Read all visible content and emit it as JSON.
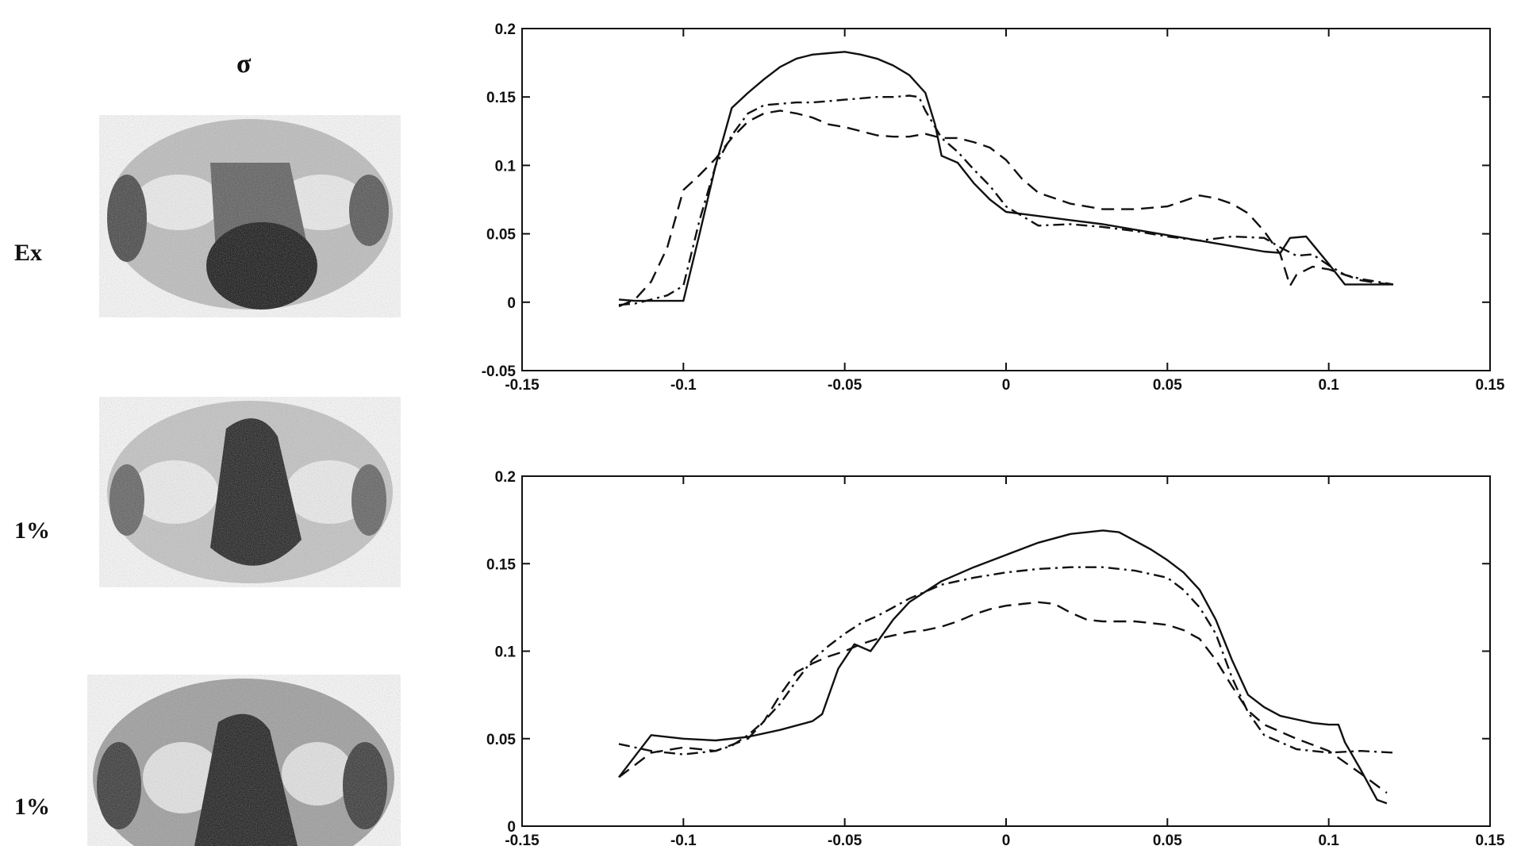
{
  "header": {
    "sigma": "σ"
  },
  "rows": [
    {
      "label": "Ex"
    },
    {
      "label": "1%"
    },
    {
      "label": "1%"
    }
  ],
  "chart_data": [
    {
      "type": "line",
      "xlim": [
        -0.15,
        0.15
      ],
      "ylim": [
        -0.05,
        0.2
      ],
      "xticks": [
        "-0.15",
        "-0.1",
        "-0.05",
        "0",
        "0.05",
        "0.1",
        "0.15"
      ],
      "yticks": [
        "-0.05",
        "0",
        "0.05",
        "0.1",
        "0.15",
        "0.2"
      ],
      "xtick_values": [
        -0.15,
        -0.1,
        -0.05,
        0,
        0.05,
        0.1,
        0.15
      ],
      "ytick_values": [
        -0.05,
        0,
        0.05,
        0.1,
        0.15,
        0.2
      ],
      "grid": false,
      "series": [
        {
          "style": "solid",
          "x": [
            -0.12,
            -0.115,
            -0.11,
            -0.1,
            -0.095,
            -0.09,
            -0.085,
            -0.08,
            -0.075,
            -0.07,
            -0.065,
            -0.06,
            -0.055,
            -0.05,
            -0.045,
            -0.04,
            -0.035,
            -0.03,
            -0.025,
            -0.022,
            -0.02,
            -0.015,
            -0.01,
            -0.005,
            0,
            0.01,
            0.02,
            0.03,
            0.04,
            0.05,
            0.06,
            0.07,
            0.08,
            0.085,
            0.088,
            0.093,
            0.1,
            0.105,
            0.11,
            0.115,
            0.12
          ],
          "y": [
            0.002,
            0.001,
            0.001,
            0.001,
            0.05,
            0.1,
            0.142,
            0.153,
            0.163,
            0.172,
            0.178,
            0.181,
            0.182,
            0.183,
            0.181,
            0.178,
            0.173,
            0.166,
            0.153,
            0.13,
            0.107,
            0.102,
            0.087,
            0.075,
            0.066,
            0.063,
            0.06,
            0.057,
            0.053,
            0.049,
            0.045,
            0.041,
            0.037,
            0.036,
            0.047,
            0.048,
            0.028,
            0.013,
            0.013,
            0.013,
            0.013
          ]
        },
        {
          "style": "dashed",
          "x": [
            -0.12,
            -0.115,
            -0.11,
            -0.105,
            -0.1,
            -0.095,
            -0.09,
            -0.085,
            -0.08,
            -0.075,
            -0.07,
            -0.065,
            -0.06,
            -0.055,
            -0.05,
            -0.045,
            -0.04,
            -0.035,
            -0.03,
            -0.025,
            -0.02,
            -0.015,
            -0.01,
            -0.005,
            0,
            0.005,
            0.01,
            0.02,
            0.03,
            0.04,
            0.05,
            0.055,
            0.06,
            0.065,
            0.07,
            0.075,
            0.08,
            0.085,
            0.088,
            0.09,
            0.095,
            0.1,
            0.105,
            0.11,
            0.115,
            0.12
          ],
          "y": [
            -0.003,
            0.002,
            0.015,
            0.04,
            0.082,
            0.093,
            0.105,
            0.12,
            0.132,
            0.138,
            0.14,
            0.138,
            0.135,
            0.13,
            0.128,
            0.125,
            0.122,
            0.121,
            0.121,
            0.123,
            0.12,
            0.12,
            0.117,
            0.113,
            0.104,
            0.09,
            0.08,
            0.072,
            0.068,
            0.068,
            0.07,
            0.074,
            0.078,
            0.076,
            0.072,
            0.065,
            0.052,
            0.035,
            0.012,
            0.02,
            0.026,
            0.024,
            0.02,
            0.016,
            0.014,
            0.013
          ]
        },
        {
          "style": "dashdot",
          "x": [
            -0.12,
            -0.115,
            -0.11,
            -0.105,
            -0.1,
            -0.095,
            -0.09,
            -0.085,
            -0.08,
            -0.075,
            -0.07,
            -0.065,
            -0.06,
            -0.055,
            -0.05,
            -0.045,
            -0.04,
            -0.035,
            -0.03,
            -0.027,
            -0.025,
            -0.02,
            -0.015,
            -0.01,
            -0.005,
            0,
            0.005,
            0.01,
            0.02,
            0.03,
            0.04,
            0.05,
            0.06,
            0.07,
            0.08,
            0.085,
            0.09,
            0.095,
            0.1,
            0.105,
            0.11,
            0.115,
            0.12
          ],
          "y": [
            -0.002,
            -0.001,
            0.002,
            0.005,
            0.012,
            0.06,
            0.1,
            0.122,
            0.138,
            0.144,
            0.145,
            0.146,
            0.146,
            0.147,
            0.148,
            0.149,
            0.15,
            0.15,
            0.151,
            0.15,
            0.14,
            0.12,
            0.11,
            0.097,
            0.085,
            0.07,
            0.063,
            0.056,
            0.057,
            0.055,
            0.052,
            0.048,
            0.045,
            0.048,
            0.047,
            0.04,
            0.034,
            0.035,
            0.027,
            0.02,
            0.017,
            0.015,
            0.013
          ]
        }
      ]
    },
    {
      "type": "line",
      "xlim": [
        -0.15,
        0.15
      ],
      "ylim": [
        0,
        0.2
      ],
      "xticks": [
        "-0.15",
        "-0.1",
        "-0.05",
        "0",
        "0.05",
        "0.1",
        "0.15"
      ],
      "yticks": [
        "0",
        "0.05",
        "0.1",
        "0.15",
        "0.2"
      ],
      "xtick_values": [
        -0.15,
        -0.1,
        -0.05,
        0,
        0.05,
        0.1,
        0.15
      ],
      "ytick_values": [
        0,
        0.05,
        0.1,
        0.15,
        0.2
      ],
      "grid": false,
      "series": [
        {
          "style": "solid",
          "x": [
            -0.12,
            -0.115,
            -0.11,
            -0.1,
            -0.09,
            -0.08,
            -0.07,
            -0.06,
            -0.057,
            -0.052,
            -0.047,
            -0.042,
            -0.04,
            -0.035,
            -0.03,
            -0.02,
            -0.01,
            0,
            0.01,
            0.02,
            0.03,
            0.035,
            0.04,
            0.045,
            0.05,
            0.055,
            0.06,
            0.065,
            0.07,
            0.075,
            0.08,
            0.085,
            0.09,
            0.095,
            0.1,
            0.103,
            0.105,
            0.11,
            0.115,
            0.118
          ],
          "y": [
            0.028,
            0.04,
            0.052,
            0.05,
            0.049,
            0.051,
            0.055,
            0.06,
            0.064,
            0.09,
            0.104,
            0.1,
            0.105,
            0.118,
            0.128,
            0.14,
            0.148,
            0.155,
            0.162,
            0.167,
            0.169,
            0.168,
            0.163,
            0.158,
            0.152,
            0.145,
            0.135,
            0.118,
            0.095,
            0.075,
            0.068,
            0.063,
            0.061,
            0.059,
            0.058,
            0.058,
            0.048,
            0.032,
            0.015,
            0.013
          ]
        },
        {
          "style": "dashed",
          "x": [
            -0.12,
            -0.11,
            -0.1,
            -0.09,
            -0.08,
            -0.075,
            -0.07,
            -0.065,
            -0.06,
            -0.055,
            -0.05,
            -0.045,
            -0.04,
            -0.035,
            -0.03,
            -0.025,
            -0.02,
            -0.015,
            -0.01,
            -0.005,
            0,
            0.005,
            0.01,
            0.015,
            0.02,
            0.025,
            0.03,
            0.04,
            0.05,
            0.055,
            0.06,
            0.065,
            0.07,
            0.075,
            0.08,
            0.09,
            0.1,
            0.11,
            0.118
          ],
          "y": [
            0.028,
            0.042,
            0.045,
            0.043,
            0.05,
            0.06,
            0.075,
            0.088,
            0.093,
            0.097,
            0.1,
            0.104,
            0.107,
            0.109,
            0.111,
            0.112,
            0.114,
            0.117,
            0.121,
            0.124,
            0.126,
            0.127,
            0.128,
            0.127,
            0.122,
            0.118,
            0.117,
            0.117,
            0.115,
            0.112,
            0.107,
            0.095,
            0.08,
            0.066,
            0.058,
            0.05,
            0.043,
            0.03,
            0.019
          ]
        },
        {
          "style": "dashdot",
          "x": [
            -0.12,
            -0.11,
            -0.1,
            -0.09,
            -0.085,
            -0.08,
            -0.075,
            -0.07,
            -0.065,
            -0.06,
            -0.055,
            -0.05,
            -0.045,
            -0.04,
            -0.035,
            -0.03,
            -0.02,
            -0.01,
            0,
            0.01,
            0.02,
            0.03,
            0.04,
            0.05,
            0.055,
            0.06,
            0.065,
            0.07,
            0.075,
            0.08,
            0.09,
            0.1,
            0.11,
            0.12
          ],
          "y": [
            0.047,
            0.043,
            0.041,
            0.043,
            0.046,
            0.052,
            0.06,
            0.07,
            0.083,
            0.095,
            0.103,
            0.11,
            0.116,
            0.12,
            0.125,
            0.13,
            0.138,
            0.142,
            0.145,
            0.147,
            0.148,
            0.148,
            0.146,
            0.142,
            0.135,
            0.125,
            0.11,
            0.085,
            0.065,
            0.052,
            0.044,
            0.042,
            0.043,
            0.042
          ]
        }
      ]
    }
  ]
}
